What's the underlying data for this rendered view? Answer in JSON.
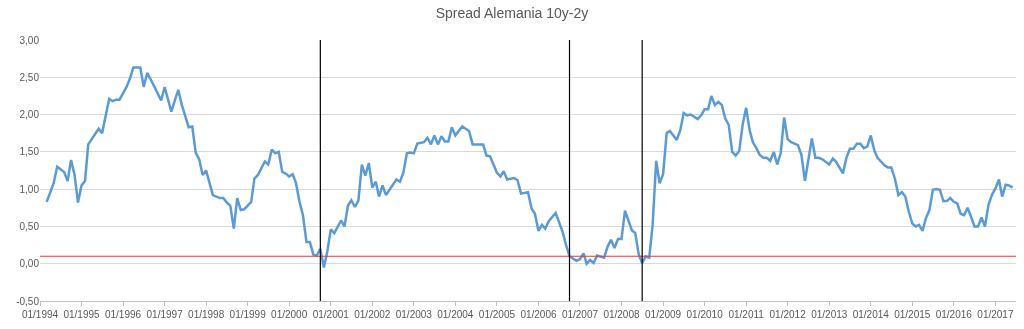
{
  "chart_data": {
    "type": "line",
    "title": "Spread Alemania 10y-2y",
    "x": [
      "1994-03",
      "1994-05",
      "1994-06",
      "1994-08",
      "1994-09",
      "1994-10",
      "1994-11",
      "1994-12",
      "1995-01",
      "1995-02",
      "1995-03",
      "1995-06",
      "1995-07",
      "1995-09",
      "1995-10",
      "1995-11",
      "1995-12",
      "1996-02",
      "1996-03",
      "1996-04",
      "1996-06",
      "1996-07",
      "1996-08",
      "1996-10",
      "1996-12",
      "1997-01",
      "1997-03",
      "1997-04",
      "1997-05",
      "1997-06",
      "1997-08",
      "1997-09",
      "1997-10",
      "1997-11",
      "1997-12",
      "1998-01",
      "1998-03",
      "1998-05",
      "1998-06",
      "1998-07",
      "1998-08",
      "1998-09",
      "1998-10",
      "1998-11",
      "1998-12",
      "1999-02",
      "1999-03",
      "1999-04",
      "1999-06",
      "1999-07",
      "1999-08",
      "1999-09",
      "1999-10",
      "1999-11",
      "1999-12",
      "2000-01",
      "2000-02",
      "2000-03",
      "2000-04",
      "2000-05",
      "2000-06",
      "2000-07",
      "2000-08",
      "2000-09",
      "2000-10",
      "2000-11",
      "2000-12",
      "2001-01",
      "2001-02",
      "2001-04",
      "2001-05",
      "2001-06",
      "2001-07",
      "2001-08",
      "2001-09",
      "2001-10",
      "2001-11",
      "2001-12",
      "2002-01",
      "2002-02",
      "2002-03",
      "2002-04",
      "2002-05",
      "2002-08",
      "2002-09",
      "2002-10",
      "2002-11",
      "2002-12",
      "2003-01",
      "2003-02",
      "2003-04",
      "2003-05",
      "2003-06",
      "2003-07",
      "2003-08",
      "2003-09",
      "2003-10",
      "2003-11",
      "2003-12",
      "2004-01",
      "2004-03",
      "2004-05",
      "2004-06",
      "2004-09",
      "2004-10",
      "2004-11",
      "2005-01",
      "2005-02",
      "2005-03",
      "2005-04",
      "2005-06",
      "2005-07",
      "2005-08",
      "2005-10",
      "2005-11",
      "2005-12",
      "2006-01",
      "2006-02",
      "2006-03",
      "2006-04",
      "2006-06",
      "2006-08",
      "2006-09",
      "2006-10",
      "2006-12",
      "2007-01",
      "2007-02",
      "2007-03",
      "2007-04",
      "2007-05",
      "2007-06",
      "2007-08",
      "2007-09",
      "2007-10",
      "2007-11",
      "2007-12",
      "2008-01",
      "2008-02",
      "2008-04",
      "2008-05",
      "2008-06",
      "2008-07",
      "2008-08",
      "2008-09",
      "2008-10",
      "2008-11",
      "2008-12",
      "2009-01",
      "2009-02",
      "2009-03",
      "2009-05",
      "2009-06",
      "2009-07",
      "2009-08",
      "2009-09",
      "2009-11",
      "2009-12",
      "2010-01",
      "2010-02",
      "2010-03",
      "2010-04",
      "2010-05",
      "2010-06",
      "2010-07",
      "2010-08",
      "2010-09",
      "2010-10",
      "2010-11",
      "2010-12",
      "2011-01",
      "2011-02",
      "2011-03",
      "2011-04",
      "2011-05",
      "2011-06",
      "2011-07",
      "2011-08",
      "2011-09",
      "2011-10",
      "2011-11",
      "2011-12",
      "2012-01",
      "2012-02",
      "2012-04",
      "2012-05",
      "2012-06",
      "2012-08",
      "2012-09",
      "2012-10",
      "2012-11",
      "2013-01",
      "2013-02",
      "2013-03",
      "2013-05",
      "2013-06",
      "2013-07",
      "2013-08",
      "2013-09",
      "2013-10",
      "2013-11",
      "2013-12",
      "2014-01",
      "2014-02",
      "2014-03",
      "2014-05",
      "2014-06",
      "2014-07",
      "2014-08",
      "2014-09",
      "2014-10",
      "2014-11",
      "2014-12",
      "2015-01",
      "2015-02",
      "2015-03",
      "2015-04",
      "2015-05",
      "2015-06",
      "2015-07",
      "2015-08",
      "2015-09",
      "2015-10",
      "2015-11",
      "2015-12",
      "2016-01",
      "2016-02",
      "2016-03",
      "2016-04",
      "2016-05",
      "2016-06",
      "2016-07",
      "2016-08",
      "2016-09",
      "2016-10",
      "2016-11",
      "2016-12",
      "2017-01",
      "2017-02",
      "2017-03",
      "2017-04",
      "2017-05",
      "2017-06"
    ],
    "series": [
      {
        "color": "#5b9bd5",
        "values": [
          0.83,
          1.08,
          1.3,
          1.23,
          1.11,
          1.39,
          1.19,
          0.82,
          1.05,
          1.11,
          1.6,
          1.81,
          1.75,
          2.21,
          2.18,
          2.2,
          2.2,
          2.37,
          2.48,
          2.63,
          2.63,
          2.37,
          2.56,
          2.38,
          2.19,
          2.37,
          2.04,
          2.19,
          2.33,
          2.13,
          1.83,
          1.84,
          1.49,
          1.4,
          1.19,
          1.25,
          0.92,
          0.88,
          0.88,
          0.82,
          0.78,
          0.47,
          0.88,
          0.72,
          0.73,
          0.83,
          1.14,
          1.19,
          1.37,
          1.33,
          1.53,
          1.48,
          1.5,
          1.23,
          1.21,
          1.17,
          1.2,
          1.08,
          0.83,
          0.65,
          0.29,
          0.29,
          0.12,
          0.11,
          0.2,
          -0.05,
          0.16,
          0.46,
          0.41,
          0.58,
          0.5,
          0.78,
          0.85,
          0.76,
          0.85,
          1.33,
          1.18,
          1.35,
          1.02,
          1.1,
          0.9,
          1.05,
          0.92,
          1.13,
          1.1,
          1.22,
          1.48,
          1.49,
          1.48,
          1.61,
          1.63,
          1.69,
          1.6,
          1.72,
          1.6,
          1.71,
          1.64,
          1.64,
          1.83,
          1.72,
          1.84,
          1.78,
          1.6,
          1.6,
          1.45,
          1.44,
          1.22,
          1.17,
          1.24,
          1.13,
          1.15,
          1.12,
          0.94,
          0.96,
          0.74,
          0.67,
          0.44,
          0.52,
          0.47,
          0.57,
          0.68,
          0.43,
          0.25,
          0.1,
          0.04,
          0.06,
          0.14,
          0.0,
          0.05,
          0.01,
          0.11,
          0.08,
          0.23,
          0.32,
          0.21,
          0.33,
          0.33,
          0.71,
          0.45,
          0.41,
          0.12,
          0.01,
          0.1,
          0.08,
          0.52,
          1.38,
          1.08,
          1.2,
          1.75,
          1.78,
          1.66,
          1.79,
          2.02,
          1.99,
          2.0,
          1.94,
          1.99,
          2.07,
          2.07,
          2.25,
          2.13,
          2.17,
          2.13,
          1.95,
          1.86,
          1.5,
          1.45,
          1.51,
          1.86,
          2.09,
          1.79,
          1.63,
          1.55,
          1.46,
          1.42,
          1.42,
          1.38,
          1.5,
          1.33,
          1.48,
          1.96,
          1.67,
          1.63,
          1.59,
          1.46,
          1.11,
          1.68,
          1.42,
          1.42,
          1.4,
          1.33,
          1.41,
          1.37,
          1.21,
          1.42,
          1.54,
          1.54,
          1.61,
          1.61,
          1.55,
          1.57,
          1.72,
          1.52,
          1.42,
          1.32,
          1.29,
          1.29,
          1.14,
          0.92,
          0.96,
          0.9,
          0.7,
          0.54,
          0.5,
          0.52,
          0.44,
          0.61,
          0.72,
          0.99,
          1.0,
          0.99,
          0.84,
          0.84,
          0.88,
          0.83,
          0.81,
          0.67,
          0.65,
          0.75,
          0.63,
          0.5,
          0.5,
          0.62,
          0.5,
          0.79,
          0.92,
          1.01,
          1.13,
          0.9,
          1.06,
          1.05,
          1.02
        ]
      }
    ],
    "xlim": [
      "1994-01",
      "2017-07"
    ],
    "xticks": [
      {
        "value": "1994-01",
        "label": "01/1994"
      },
      {
        "value": "1995-01",
        "label": "01/1995"
      },
      {
        "value": "1996-01",
        "label": "01/1996"
      },
      {
        "value": "1997-01",
        "label": "01/1997"
      },
      {
        "value": "1998-01",
        "label": "01/1998"
      },
      {
        "value": "1999-01",
        "label": "01/1999"
      },
      {
        "value": "2000-01",
        "label": "01/2000"
      },
      {
        "value": "2001-01",
        "label": "01/2001"
      },
      {
        "value": "2002-01",
        "label": "01/2002"
      },
      {
        "value": "2003-01",
        "label": "01/2003"
      },
      {
        "value": "2004-01",
        "label": "01/2004"
      },
      {
        "value": "2005-01",
        "label": "01/2005"
      },
      {
        "value": "2006-01",
        "label": "01/2006"
      },
      {
        "value": "2007-01",
        "label": "01/2007"
      },
      {
        "value": "2008-01",
        "label": "01/2008"
      },
      {
        "value": "2009-01",
        "label": "01/2009"
      },
      {
        "value": "2010-01",
        "label": "01/2010"
      },
      {
        "value": "2011-01",
        "label": "01/2011"
      },
      {
        "value": "2012-01",
        "label": "01/2012"
      },
      {
        "value": "2013-01",
        "label": "01/2013"
      },
      {
        "value": "2014-01",
        "label": "01/2014"
      },
      {
        "value": "2015-01",
        "label": "01/2015"
      },
      {
        "value": "2016-01",
        "label": "01/2016"
      },
      {
        "value": "2017-01",
        "label": "01/2017"
      }
    ],
    "ylim": [
      -0.5,
      3.0
    ],
    "yticks": [
      {
        "value": -0.5,
        "label": "-0,50"
      },
      {
        "value": 0,
        "label": "0,00"
      },
      {
        "value": 0.5,
        "label": "0,50"
      },
      {
        "value": 1.0,
        "label": "1,00"
      },
      {
        "value": 1.5,
        "label": "1,50"
      },
      {
        "value": 2.0,
        "label": "2,00"
      },
      {
        "value": 2.5,
        "label": "2,50"
      },
      {
        "value": 3.0,
        "label": "3,00"
      }
    ],
    "ref_lines": [
      {
        "axis": "y",
        "value": 0.1,
        "color": "#e8393a"
      },
      {
        "axis": "x",
        "value": "2000-10",
        "color": "#000000"
      },
      {
        "axis": "x",
        "value": "2006-10",
        "color": "#000000"
      },
      {
        "axis": "x",
        "value": "2008-07",
        "color": "#000000"
      }
    ],
    "grid": "y",
    "marker": "none",
    "line_style": "solid"
  }
}
